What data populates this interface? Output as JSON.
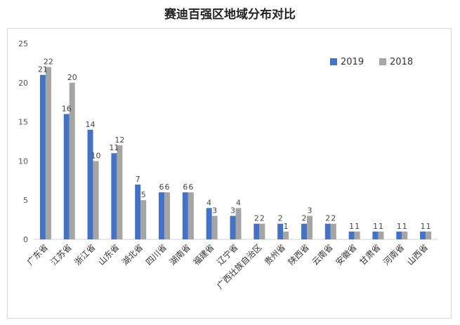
{
  "chart_data": {
    "type": "bar",
    "title": "赛迪百强区地域分布对比",
    "xlabel": "",
    "ylabel": "",
    "ylim": [
      0,
      25
    ],
    "yticks": [
      0,
      5,
      10,
      15,
      20,
      25
    ],
    "grid": false,
    "legend_position": "top-right",
    "categories": [
      "广东省",
      "江苏省",
      "浙江省",
      "山东省",
      "湖北省",
      "四川省",
      "湖南省",
      "福建省",
      "辽宁省",
      "广西壮族自治区",
      "贵州省",
      "陕西省",
      "云南省",
      "安徽省",
      "甘肃省",
      "河南省",
      "山西省"
    ],
    "series": [
      {
        "name": "2019",
        "color": "#4472c4",
        "values": [
          21,
          16,
          14,
          11,
          7,
          6,
          6,
          4,
          3,
          2,
          2,
          2,
          2,
          1,
          1,
          1,
          1
        ]
      },
      {
        "name": "2018",
        "color": "#a5a5a5",
        "values": [
          22,
          20,
          10,
          12,
          5,
          6,
          6,
          3,
          4,
          2,
          1,
          3,
          2,
          1,
          1,
          1,
          1
        ]
      }
    ]
  }
}
